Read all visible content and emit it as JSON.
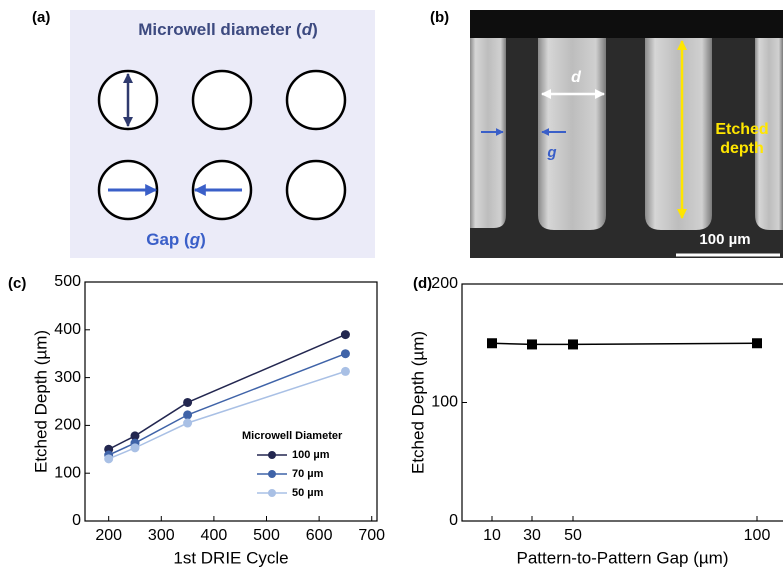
{
  "panel_labels": [
    "(a)",
    "(b)",
    "(c)",
    "(d)"
  ],
  "diagram": {
    "diameter_text": "Microwell diameter (",
    "diameter_var": "d",
    "diameter_close": ")",
    "gap_text": "Gap (",
    "gap_var": "g",
    "gap_close": ")"
  },
  "image": {
    "d_label": "d",
    "g_label": "g",
    "depth_label_1": "Etched",
    "depth_label_2": "depth",
    "scale_bar": "100 µm"
  },
  "chart_data": [
    {
      "type": "line",
      "x_label": "1st DRIE Cycle",
      "y_label": "Etched Depth (µm)",
      "x": [
        200,
        250,
        350,
        650
      ],
      "xlim": [
        155,
        710
      ],
      "xticks": [
        200,
        300,
        400,
        500,
        600,
        700
      ],
      "ylim": [
        0,
        500
      ],
      "yticks": [
        0,
        100,
        200,
        300,
        400,
        500
      ],
      "legend_title": "Microwell Diameter",
      "legend": "lower right",
      "marker": "circle",
      "series": [
        {
          "name": "100 µm",
          "color": "#232750",
          "values": [
            150,
            178,
            248,
            390
          ]
        },
        {
          "name": "70 µm",
          "color": "#3f63a8",
          "values": [
            138,
            163,
            222,
            350
          ]
        },
        {
          "name": "50 µm",
          "color": "#a9c0e5",
          "values": [
            130,
            153,
            205,
            313
          ]
        }
      ]
    },
    {
      "type": "line",
      "x_label": "Pattern-to-Pattern Gap (µm)",
      "y_label": "Etched Depth (µm)",
      "x": [
        10,
        30,
        50,
        100
      ],
      "xlim": [
        0,
        110
      ],
      "xticks": [
        10,
        30,
        50,
        100
      ],
      "ylim": [
        0,
        200
      ],
      "yticks": [
        0,
        100,
        200
      ],
      "marker": "square",
      "series": [
        {
          "color": "#000000",
          "values": [
            150,
            149,
            149,
            150
          ]
        }
      ]
    }
  ]
}
